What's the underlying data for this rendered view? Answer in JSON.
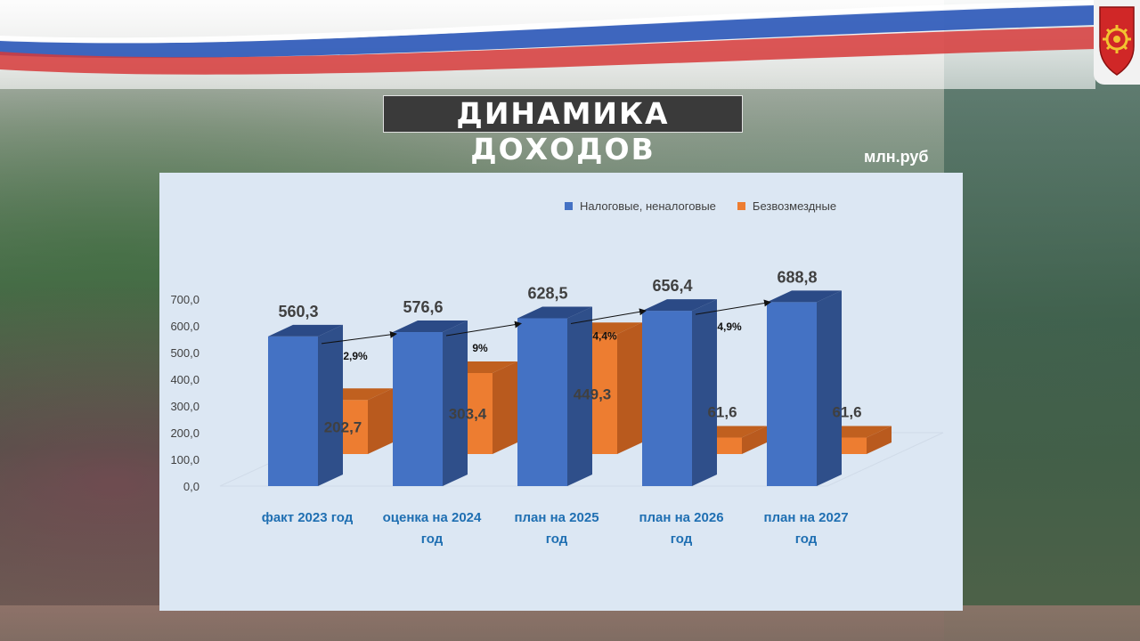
{
  "header": {
    "title": "ДИНАМИКА ДОХОДОВ",
    "units": "млн.руб"
  },
  "colors": {
    "tax": "#4472c4",
    "tax_side": "#2f4f8a",
    "tax_top": "#2b4a86",
    "free": "#ed7d31",
    "free_side": "#b95a1e",
    "free_top": "#c0601f",
    "category_label": "#1f6fb2"
  },
  "chart_data": {
    "type": "bar",
    "categories": [
      "факт 2023 год",
      "оценка на 2024 год",
      "план на 2025 год",
      "план на 2026 год",
      "план на 2027 год"
    ],
    "series": [
      {
        "name": "Налоговые, неналоговые",
        "values": [
          560.3,
          576.6,
          628.5,
          656.4,
          688.8
        ],
        "labels": [
          "560,3",
          "576,6",
          "628,5",
          "656,4",
          "688,8"
        ]
      },
      {
        "name": "Безвозмездные",
        "values": [
          202.7,
          303.4,
          449.3,
          61.6,
          61.6
        ],
        "labels": [
          "202,7",
          "303,4",
          "449,3",
          "61,6",
          "61,6"
        ]
      }
    ],
    "yticks": [
      "0,0",
      "100,0",
      "200,0",
      "300,0",
      "400,0",
      "500,0",
      "600,0",
      "700,0"
    ],
    "ylim": [
      0,
      700
    ],
    "growth_annotations": [
      "2,9%",
      "9%",
      "4,4%",
      "4,9%"
    ],
    "legend": "top-right",
    "grid": false
  }
}
